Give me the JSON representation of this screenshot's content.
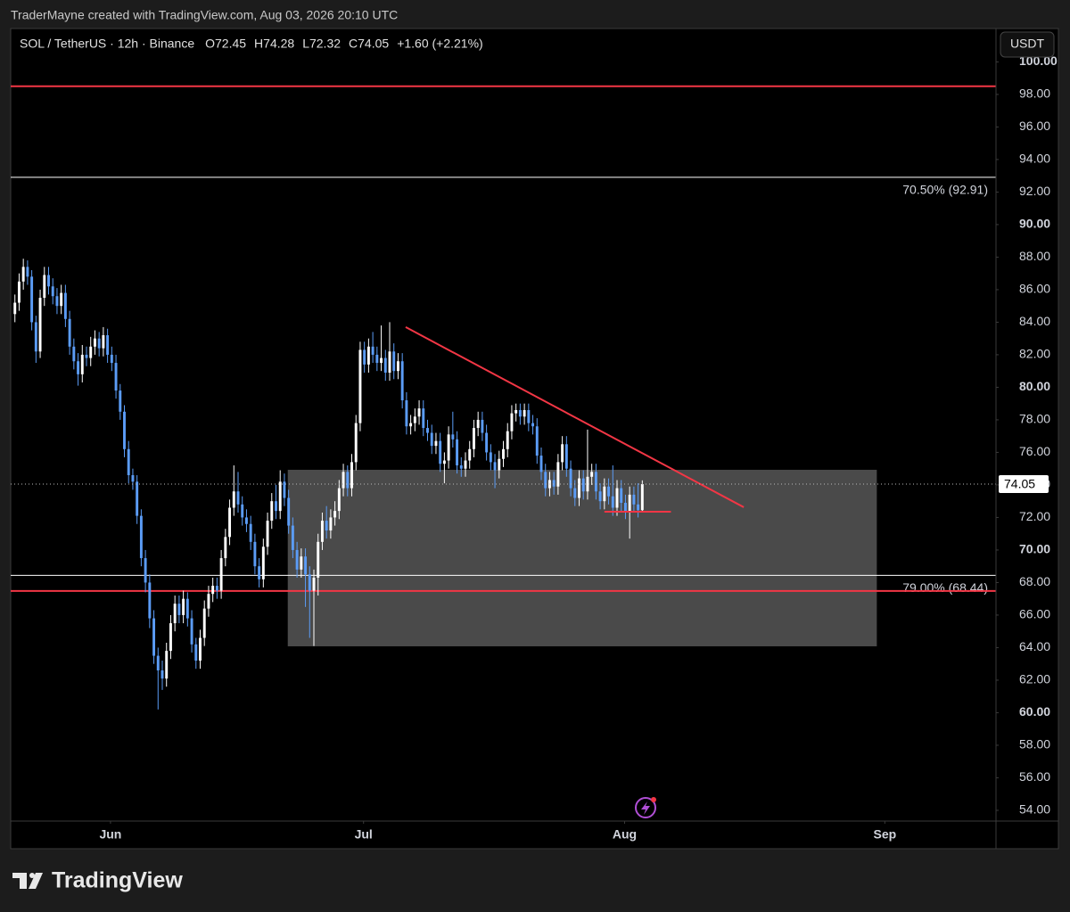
{
  "header": {
    "text": "TraderMayne created with TradingView.com, Aug 03, 2026 20:10 UTC"
  },
  "footer": {
    "brand": "TradingView"
  },
  "chart_data": {
    "type": "candlestick",
    "title": "SOL / TetherUS · 12h · Binance",
    "ohlc_labels": [
      "O72.45",
      "H74.28",
      "L72.32",
      "C74.05"
    ],
    "change_label": "+1.60 (+2.21%)",
    "currency": "USDT",
    "up_color": "#ffffff",
    "down_color": "#5b9cf6",
    "grid": false,
    "candles": [
      [
        84.5,
        85.7,
        84.0,
        85.2
      ],
      [
        85.2,
        87.0,
        84.7,
        86.5
      ],
      [
        86.5,
        87.9,
        86.0,
        87.4
      ],
      [
        87.4,
        87.8,
        86.3,
        86.8
      ],
      [
        86.8,
        87.2,
        83.5,
        84.0
      ],
      [
        84.0,
        84.4,
        81.5,
        82.2
      ],
      [
        82.2,
        86.0,
        81.8,
        85.5
      ],
      [
        85.5,
        87.4,
        85.0,
        86.9
      ],
      [
        86.9,
        87.4,
        85.7,
        86.2
      ],
      [
        86.2,
        86.7,
        85.1,
        85.6
      ],
      [
        85.6,
        86.1,
        84.5,
        85.0
      ],
      [
        85.0,
        86.3,
        84.5,
        85.8
      ],
      [
        85.8,
        86.3,
        83.7,
        84.2
      ],
      [
        84.2,
        84.7,
        82.0,
        82.5
      ],
      [
        82.5,
        83.0,
        81.1,
        81.6
      ],
      [
        81.6,
        82.1,
        80.1,
        80.8
      ],
      [
        80.8,
        82.6,
        80.3,
        82.0
      ],
      [
        82.0,
        82.5,
        81.3,
        81.8
      ],
      [
        81.8,
        83.1,
        81.3,
        82.5
      ],
      [
        82.5,
        83.5,
        82.0,
        83.0
      ],
      [
        83.0,
        83.4,
        81.9,
        82.4
      ],
      [
        82.4,
        83.7,
        81.9,
        83.2
      ],
      [
        83.2,
        83.6,
        81.5,
        82.0
      ],
      [
        82.0,
        82.5,
        81.0,
        81.5
      ],
      [
        81.5,
        82.0,
        79.3,
        79.8
      ],
      [
        79.8,
        80.2,
        78.0,
        78.5
      ],
      [
        78.5,
        78.9,
        75.7,
        76.2
      ],
      [
        76.2,
        76.7,
        74.1,
        74.6
      ],
      [
        74.6,
        75.0,
        73.7,
        74.2
      ],
      [
        74.2,
        74.6,
        71.6,
        72.1
      ],
      [
        72.1,
        72.5,
        69.0,
        69.5
      ],
      [
        69.5,
        70.0,
        67.4,
        68.0
      ],
      [
        68.0,
        68.5,
        65.2,
        65.8
      ],
      [
        65.8,
        66.3,
        63.0,
        63.5
      ],
      [
        63.5,
        64.0,
        60.2,
        62.6
      ],
      [
        62.6,
        63.2,
        61.4,
        62.1
      ],
      [
        62.1,
        64.3,
        61.6,
        63.8
      ],
      [
        63.8,
        66.0,
        63.3,
        65.5
      ],
      [
        65.5,
        67.2,
        65.0,
        66.7
      ],
      [
        66.7,
        67.2,
        65.5,
        66.0
      ],
      [
        66.0,
        67.5,
        65.5,
        67.0
      ],
      [
        67.0,
        67.4,
        65.3,
        65.8
      ],
      [
        65.8,
        66.3,
        63.7,
        64.2
      ],
      [
        64.2,
        64.6,
        62.7,
        63.2
      ],
      [
        63.2,
        65.1,
        62.7,
        64.6
      ],
      [
        64.6,
        66.9,
        64.1,
        66.4
      ],
      [
        66.4,
        67.8,
        65.9,
        67.3
      ],
      [
        67.3,
        68.3,
        66.8,
        67.8
      ],
      [
        67.8,
        68.3,
        67.0,
        67.5
      ],
      [
        67.5,
        70.0,
        67.0,
        69.5
      ],
      [
        69.5,
        71.3,
        69.0,
        70.8
      ],
      [
        70.8,
        73.1,
        70.3,
        72.6
      ],
      [
        72.6,
        75.2,
        72.1,
        73.6
      ],
      [
        73.6,
        74.8,
        72.3,
        72.8
      ],
      [
        72.8,
        73.3,
        71.5,
        72.0
      ],
      [
        72.0,
        72.5,
        71.1,
        71.6
      ],
      [
        71.6,
        72.1,
        70.0,
        70.5
      ],
      [
        70.5,
        71.0,
        68.5,
        69.0
      ],
      [
        69.0,
        69.5,
        67.7,
        68.2
      ],
      [
        68.2,
        70.7,
        67.7,
        70.2
      ],
      [
        70.2,
        72.3,
        69.7,
        71.8
      ],
      [
        71.8,
        73.5,
        71.3,
        73.0
      ],
      [
        73.0,
        74.0,
        71.9,
        72.4
      ],
      [
        72.4,
        74.9,
        71.9,
        74.2
      ],
      [
        74.2,
        74.7,
        72.7,
        73.2
      ],
      [
        73.2,
        73.7,
        71.0,
        71.5
      ],
      [
        71.5,
        72.0,
        69.5,
        70.0
      ],
      [
        70.0,
        70.5,
        68.3,
        68.8
      ],
      [
        68.8,
        70.1,
        68.3,
        69.6
      ],
      [
        69.6,
        70.1,
        66.5,
        68.5
      ],
      [
        68.5,
        69.0,
        64.6,
        67.5
      ],
      [
        67.5,
        68.8,
        64.1,
        68.3
      ],
      [
        68.3,
        71.0,
        67.2,
        70.5
      ],
      [
        70.5,
        72.3,
        70.0,
        71.8
      ],
      [
        71.8,
        72.7,
        70.7,
        71.2
      ],
      [
        71.2,
        72.5,
        70.7,
        72.0
      ],
      [
        72.0,
        73.0,
        71.5,
        72.4
      ],
      [
        72.4,
        74.3,
        71.9,
        73.8
      ],
      [
        73.8,
        75.3,
        73.3,
        74.8
      ],
      [
        74.8,
        75.2,
        73.3,
        73.8
      ],
      [
        73.8,
        75.9,
        73.3,
        75.4
      ],
      [
        75.4,
        78.3,
        74.9,
        77.8
      ],
      [
        77.8,
        82.8,
        77.3,
        82.3
      ],
      [
        82.3,
        82.8,
        80.9,
        81.4
      ],
      [
        81.4,
        83.0,
        80.9,
        82.5
      ],
      [
        82.5,
        83.4,
        81.5,
        82.0
      ],
      [
        82.0,
        82.5,
        81.0,
        81.5
      ],
      [
        81.5,
        83.8,
        81.0,
        81.8
      ],
      [
        81.8,
        82.3,
        80.4,
        80.9
      ],
      [
        80.9,
        84.0,
        80.4,
        82.2
      ],
      [
        82.2,
        82.7,
        80.5,
        81.0
      ],
      [
        81.0,
        82.1,
        80.5,
        81.6
      ],
      [
        81.6,
        82.1,
        78.7,
        79.2
      ],
      [
        79.2,
        79.7,
        77.1,
        77.6
      ],
      [
        77.6,
        78.3,
        77.1,
        77.8
      ],
      [
        77.8,
        78.7,
        77.3,
        78.2
      ],
      [
        78.2,
        79.2,
        77.7,
        78.7
      ],
      [
        78.7,
        79.2,
        77.0,
        77.5
      ],
      [
        77.5,
        78.0,
        76.7,
        77.2
      ],
      [
        77.2,
        77.7,
        75.9,
        76.4
      ],
      [
        76.4,
        77.2,
        75.9,
        76.7
      ],
      [
        76.7,
        77.2,
        74.8,
        75.3
      ],
      [
        75.3,
        76.0,
        74.1,
        75.5
      ],
      [
        75.5,
        77.6,
        75.0,
        77.1
      ],
      [
        77.1,
        78.5,
        76.3,
        76.8
      ],
      [
        76.8,
        77.3,
        74.7,
        75.2
      ],
      [
        75.2,
        75.7,
        74.5,
        75.0
      ],
      [
        75.0,
        76.0,
        74.5,
        75.5
      ],
      [
        75.5,
        76.7,
        75.0,
        76.2
      ],
      [
        76.2,
        78.0,
        75.7,
        77.5
      ],
      [
        77.5,
        78.5,
        77.0,
        78.0
      ],
      [
        78.0,
        78.5,
        76.7,
        77.2
      ],
      [
        77.2,
        77.7,
        75.5,
        76.0
      ],
      [
        76.0,
        76.5,
        74.9,
        75.4
      ],
      [
        75.4,
        75.9,
        73.8,
        74.9
      ],
      [
        74.9,
        76.1,
        74.4,
        75.6
      ],
      [
        75.6,
        76.7,
        75.1,
        76.2
      ],
      [
        76.2,
        77.8,
        75.7,
        77.3
      ],
      [
        77.3,
        78.9,
        76.8,
        78.4
      ],
      [
        78.4,
        79.0,
        77.9,
        78.6
      ],
      [
        78.6,
        79.0,
        77.7,
        78.2
      ],
      [
        78.2,
        79.0,
        77.7,
        78.6
      ],
      [
        78.6,
        79.0,
        77.3,
        77.8
      ],
      [
        77.8,
        78.3,
        77.1,
        77.6
      ],
      [
        77.6,
        78.1,
        75.3,
        75.8
      ],
      [
        75.8,
        76.3,
        74.3,
        74.8
      ],
      [
        74.8,
        75.3,
        73.3,
        73.8
      ],
      [
        73.8,
        74.8,
        73.3,
        74.3
      ],
      [
        74.3,
        74.8,
        73.4,
        73.9
      ],
      [
        73.9,
        75.9,
        73.4,
        75.4
      ],
      [
        75.4,
        77.0,
        74.9,
        76.5
      ],
      [
        76.5,
        77.0,
        74.5,
        75.0
      ],
      [
        75.0,
        75.5,
        73.3,
        73.8
      ],
      [
        73.8,
        74.3,
        72.7,
        73.2
      ],
      [
        73.2,
        74.9,
        72.7,
        74.4
      ],
      [
        74.4,
        74.9,
        73.1,
        73.6
      ],
      [
        73.6,
        77.4,
        73.1,
        74.5
      ],
      [
        74.5,
        75.3,
        74.0,
        74.8
      ],
      [
        74.8,
        75.3,
        73.1,
        73.6
      ],
      [
        73.6,
        74.1,
        72.5,
        73.0
      ],
      [
        73.0,
        74.4,
        72.5,
        73.9
      ],
      [
        73.9,
        74.4,
        72.8,
        73.3
      ],
      [
        73.3,
        75.2,
        72.1,
        72.6
      ],
      [
        72.6,
        74.3,
        72.1,
        73.8
      ],
      [
        73.8,
        74.3,
        72.4,
        72.9
      ],
      [
        72.9,
        73.4,
        71.9,
        72.4
      ],
      [
        72.4,
        73.9,
        70.7,
        73.4
      ],
      [
        73.4,
        73.9,
        72.3,
        72.8
      ],
      [
        72.8,
        74.1,
        72.0,
        72.45
      ],
      [
        72.45,
        74.28,
        72.32,
        74.05
      ]
    ],
    "xlim": [
      0,
      234
    ],
    "xticks": [
      {
        "value": 23.7,
        "label": "Jun"
      },
      {
        "value": 83.8,
        "label": "Jul"
      },
      {
        "value": 145.8,
        "label": "Aug"
      },
      {
        "value": 207.6,
        "label": "Sep"
      }
    ],
    "ylim": [
      53.34,
      102.05
    ],
    "yticks": [
      {
        "value": 54,
        "label": "54.00"
      },
      {
        "value": 56,
        "label": "56.00"
      },
      {
        "value": 58,
        "label": "58.00"
      },
      {
        "value": 60,
        "label": "60.00"
      },
      {
        "value": 62,
        "label": "62.00"
      },
      {
        "value": 64,
        "label": "64.00"
      },
      {
        "value": 66,
        "label": "66.00"
      },
      {
        "value": 68,
        "label": "68.00"
      },
      {
        "value": 70,
        "label": "70.00"
      },
      {
        "value": 72,
        "label": "72.00"
      },
      {
        "value": 74,
        "label": "74.00"
      },
      {
        "value": 76,
        "label": "76.00"
      },
      {
        "value": 78,
        "label": "78.00"
      },
      {
        "value": 80,
        "label": "80.00"
      },
      {
        "value": 82,
        "label": "82.00"
      },
      {
        "value": 84,
        "label": "84.00"
      },
      {
        "value": 86,
        "label": "86.00"
      },
      {
        "value": 88,
        "label": "88.00"
      },
      {
        "value": 90,
        "label": "90.00"
      },
      {
        "value": 92,
        "label": "92.00"
      },
      {
        "value": 94,
        "label": "94.00"
      },
      {
        "value": 96,
        "label": "96.00"
      },
      {
        "value": 98,
        "label": "98.00"
      },
      {
        "value": 100,
        "label": "100.00"
      }
    ],
    "levels": [
      {
        "value": 98.5,
        "color": "#f23645"
      },
      {
        "value": 92.91,
        "color": "#ffffff",
        "label": "70.50% (92.91)"
      },
      {
        "value": 68.44,
        "color": "#ffffff",
        "label": "79.00% (68.44)"
      },
      {
        "value": 67.48,
        "color": "#f23645"
      }
    ],
    "zone": {
      "x": [
        65.8,
        205.7
      ],
      "y": [
        64.08,
        74.93
      ],
      "color": "#4a4a4a"
    },
    "trendlines": [
      {
        "x": [
          93.8,
          174.1
        ],
        "y": [
          83.7,
          72.63
        ],
        "color": "#f23645"
      },
      {
        "x": [
          141,
          156.8
        ],
        "y": [
          72.35,
          72.35
        ],
        "color": "#f23645"
      }
    ]
  }
}
